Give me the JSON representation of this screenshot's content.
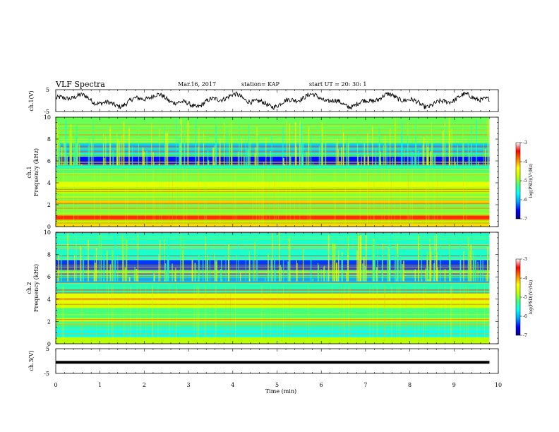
{
  "header": {
    "title": "VLF Spectra",
    "date": "Mar.16, 2017",
    "station": "station= KAP",
    "start": "start  UT  =   20: 30: 1"
  },
  "chart_data": [
    {
      "type": "line",
      "panel": "ch1-waveform",
      "ylabel": "ch.1(V)",
      "ylim": [
        -5,
        5
      ],
      "yticks": [
        "5",
        "-5"
      ],
      "xlim": [
        0,
        10
      ],
      "trace_color": "#000000",
      "signal": "noisy oscillating waveform, amplitude about ±3 V, from 0 to 9.8 min"
    },
    {
      "type": "heatmap",
      "panel": "ch1-spectrogram",
      "ylabel": "ch.1\nFrequency (kHz)",
      "ylim": [
        0,
        10
      ],
      "yticks": [
        "0",
        "2",
        "4",
        "6",
        "8",
        "10"
      ],
      "xlim": [
        0,
        10
      ],
      "data_end_min": 9.8,
      "colorbar": {
        "label": "log(PSD)(V²/Hz)",
        "range": [
          -7,
          -3
        ],
        "ticks": [
          "-3",
          "-4",
          "-5",
          "-6",
          "-7"
        ],
        "colors": [
          "#000080",
          "#0000ff",
          "#00a0ff",
          "#00ffff",
          "#40ff80",
          "#c0ff00",
          "#ffff00",
          "#ff8000",
          "#ff0000",
          "#ffffff"
        ]
      },
      "bands": [
        {
          "from": 0.0,
          "to": 0.25,
          "level": 0.7
        },
        {
          "from": 0.25,
          "to": 0.6,
          "level": 0.55
        },
        {
          "from": 0.6,
          "to": 1.0,
          "level": 0.85
        },
        {
          "from": 1.0,
          "to": 1.7,
          "level": 0.5
        },
        {
          "from": 1.7,
          "to": 2.1,
          "level": 0.48
        },
        {
          "from": 2.1,
          "to": 2.4,
          "level": 0.72
        },
        {
          "from": 2.4,
          "to": 3.0,
          "level": 0.5
        },
        {
          "from": 3.0,
          "to": 3.6,
          "level": 0.55
        },
        {
          "from": 3.6,
          "to": 4.1,
          "level": 0.62
        },
        {
          "from": 4.1,
          "to": 4.9,
          "level": 0.5
        },
        {
          "from": 4.9,
          "to": 5.3,
          "level": 0.45
        },
        {
          "from": 5.3,
          "to": 5.6,
          "level": 0.4
        },
        {
          "from": 5.6,
          "to": 6.4,
          "level": 0.12
        },
        {
          "from": 6.4,
          "to": 6.7,
          "level": 0.42
        },
        {
          "from": 6.7,
          "to": 7.6,
          "level": 0.28
        },
        {
          "from": 7.6,
          "to": 10.0,
          "level": 0.48
        }
      ]
    },
    {
      "type": "heatmap",
      "panel": "ch2-spectrogram",
      "ylabel": "ch.2\nFrequency (kHz)",
      "ylim": [
        0,
        10
      ],
      "yticks": [
        "0",
        "2",
        "4",
        "6",
        "8",
        "10"
      ],
      "xlim": [
        0,
        10
      ],
      "data_end_min": 9.8,
      "colorbar": {
        "label": "log(PSD)(V²/Hz)",
        "range": [
          -7,
          -3
        ],
        "ticks": [
          "-3",
          "-4",
          "-5",
          "-6",
          "-7"
        ],
        "colors": [
          "#000080",
          "#0000ff",
          "#00a0ff",
          "#00ffff",
          "#40ff80",
          "#c0ff00",
          "#ffff00",
          "#ff8000",
          "#ff0000",
          "#ffffff"
        ]
      },
      "bands": [
        {
          "from": 0.0,
          "to": 0.6,
          "level": 0.55
        },
        {
          "from": 0.6,
          "to": 1.4,
          "level": 0.35
        },
        {
          "from": 1.4,
          "to": 2.0,
          "level": 0.42
        },
        {
          "from": 2.0,
          "to": 2.3,
          "level": 0.6
        },
        {
          "from": 2.3,
          "to": 3.2,
          "level": 0.45
        },
        {
          "from": 3.2,
          "to": 3.6,
          "level": 0.58
        },
        {
          "from": 3.6,
          "to": 4.5,
          "level": 0.62
        },
        {
          "from": 4.5,
          "to": 5.4,
          "level": 0.4
        },
        {
          "from": 5.4,
          "to": 6.3,
          "level": 0.25
        },
        {
          "from": 6.3,
          "to": 6.6,
          "level": 0.45
        },
        {
          "from": 6.6,
          "to": 7.5,
          "level": 0.15
        },
        {
          "from": 7.5,
          "to": 10.0,
          "level": 0.38
        }
      ]
    },
    {
      "type": "line",
      "panel": "ch3-waveform",
      "ylabel": "ch.3(V)",
      "ylim": [
        -5,
        5
      ],
      "yticks": [
        "5",
        "-5"
      ],
      "xlim": [
        0,
        10
      ],
      "constant_value": -0.5,
      "x_end": 9.8,
      "trace_color": "#000000"
    }
  ],
  "x_axis": {
    "label": "Time (min)",
    "ticks": [
      "0",
      "1",
      "2",
      "3",
      "4",
      "5",
      "6",
      "7",
      "8",
      "9",
      "10"
    ]
  }
}
